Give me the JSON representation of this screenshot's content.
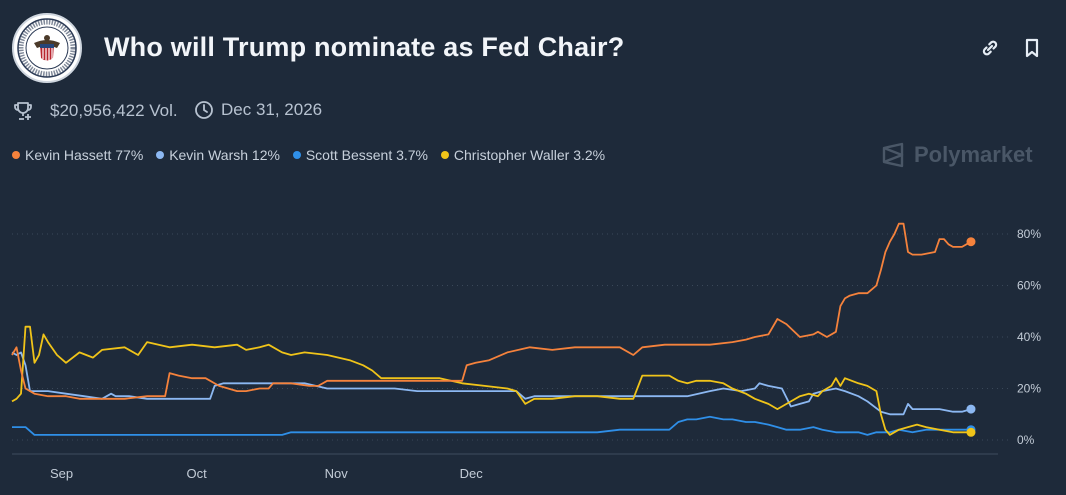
{
  "market": {
    "title": "Who will Trump nominate as Fed Chair?",
    "volume": "$20,956,422 Vol.",
    "end_date": "Dec 31, 2026",
    "brand": "Polymarket"
  },
  "icons": {
    "seal": "federal-reserve-seal",
    "link": "link-icon",
    "bookmark": "bookmark-icon",
    "volume": "trophy-icon",
    "date": "clock-icon",
    "brand": "polymarket-logo-icon"
  },
  "legend": [
    {
      "label": "Kevin Hassett 77%",
      "color": "#f5823c"
    },
    {
      "label": "Kevin Warsh 12%",
      "color": "#8cb8f2"
    },
    {
      "label": "Scott Bessent 3.7%",
      "color": "#2f8fe8"
    },
    {
      "label": "Christopher Waller 3.2%",
      "color": "#f0c419"
    }
  ],
  "chart_data": {
    "type": "line",
    "x_ticks": [
      "Sep",
      "Oct",
      "Nov",
      "Dec"
    ],
    "y_ticks": [
      "0%",
      "20%",
      "40%",
      "60%",
      "80%"
    ],
    "ylim": [
      0,
      90
    ],
    "x_unit": "days from Aug 21 to Dec 12",
    "grid": "horizontal dotted",
    "legend_position": "top-left",
    "series": [
      {
        "name": "Kevin Hassett",
        "color": "#f5823c",
        "points": [
          [
            0,
            33
          ],
          [
            1,
            36
          ],
          [
            2,
            27
          ],
          [
            3,
            20
          ],
          [
            5,
            18
          ],
          [
            8,
            17
          ],
          [
            12,
            17
          ],
          [
            15,
            16
          ],
          [
            20,
            16
          ],
          [
            25,
            16
          ],
          [
            30,
            17
          ],
          [
            34,
            17
          ],
          [
            35,
            26
          ],
          [
            37,
            25
          ],
          [
            40,
            24
          ],
          [
            43,
            24
          ],
          [
            46,
            21
          ],
          [
            50,
            19
          ],
          [
            52,
            19
          ],
          [
            55,
            20
          ],
          [
            57,
            20
          ],
          [
            58,
            22
          ],
          [
            62,
            22
          ],
          [
            66,
            21
          ],
          [
            68,
            21
          ],
          [
            70,
            23
          ],
          [
            75,
            23
          ],
          [
            80,
            23
          ],
          [
            85,
            23
          ],
          [
            90,
            23
          ],
          [
            95,
            23
          ],
          [
            100,
            23
          ],
          [
            101,
            29
          ],
          [
            103,
            30
          ],
          [
            106,
            31
          ],
          [
            110,
            34
          ],
          [
            115,
            36
          ],
          [
            120,
            35
          ],
          [
            125,
            36
          ],
          [
            130,
            36
          ],
          [
            135,
            36
          ],
          [
            138,
            33
          ],
          [
            140,
            36
          ],
          [
            145,
            37
          ],
          [
            150,
            37
          ],
          [
            155,
            37
          ],
          [
            160,
            38
          ],
          [
            163,
            39
          ],
          [
            165,
            40
          ],
          [
            168,
            41
          ],
          [
            170,
            47
          ],
          [
            172,
            45
          ],
          [
            175,
            40
          ],
          [
            178,
            41
          ],
          [
            179,
            42
          ],
          [
            181,
            40
          ],
          [
            183,
            42
          ],
          [
            184,
            52
          ],
          [
            185,
            55
          ],
          [
            186,
            56
          ],
          [
            188,
            57
          ],
          [
            190,
            57
          ],
          [
            192,
            60
          ],
          [
            193,
            66
          ],
          [
            194,
            73
          ],
          [
            195,
            77
          ],
          [
            196,
            80
          ],
          [
            197,
            84
          ],
          [
            198,
            84
          ],
          [
            199,
            73
          ],
          [
            200,
            72
          ],
          [
            202,
            72
          ],
          [
            205,
            73
          ],
          [
            206,
            78
          ],
          [
            207,
            78
          ],
          [
            208,
            76
          ],
          [
            209,
            75
          ],
          [
            211,
            75
          ],
          [
            213,
            77
          ]
        ]
      },
      {
        "name": "Kevin Warsh",
        "color": "#8cb8f2",
        "points": [
          [
            0,
            34
          ],
          [
            1,
            33
          ],
          [
            2,
            34
          ],
          [
            3,
            29
          ],
          [
            4,
            19
          ],
          [
            8,
            19
          ],
          [
            12,
            18
          ],
          [
            16,
            17
          ],
          [
            20,
            16
          ],
          [
            22,
            18
          ],
          [
            23,
            17
          ],
          [
            26,
            17
          ],
          [
            30,
            16
          ],
          [
            35,
            16
          ],
          [
            40,
            16
          ],
          [
            44,
            16
          ],
          [
            45,
            21
          ],
          [
            47,
            22
          ],
          [
            55,
            22
          ],
          [
            60,
            22
          ],
          [
            65,
            22
          ],
          [
            70,
            20
          ],
          [
            75,
            20
          ],
          [
            80,
            20
          ],
          [
            85,
            20
          ],
          [
            90,
            19
          ],
          [
            95,
            19
          ],
          [
            100,
            19
          ],
          [
            105,
            19
          ],
          [
            110,
            19
          ],
          [
            112,
            19
          ],
          [
            114,
            16
          ],
          [
            116,
            17
          ],
          [
            118,
            17
          ],
          [
            120,
            17
          ],
          [
            125,
            17
          ],
          [
            130,
            17
          ],
          [
            135,
            17
          ],
          [
            140,
            17
          ],
          [
            145,
            17
          ],
          [
            150,
            17
          ],
          [
            155,
            19
          ],
          [
            158,
            20
          ],
          [
            162,
            19
          ],
          [
            165,
            20
          ],
          [
            166,
            22
          ],
          [
            168,
            21
          ],
          [
            171,
            20
          ],
          [
            173,
            13
          ],
          [
            175,
            14
          ],
          [
            177,
            15
          ],
          [
            178,
            18
          ],
          [
            180,
            19
          ],
          [
            183,
            20
          ],
          [
            185,
            19
          ],
          [
            188,
            17
          ],
          [
            190,
            15
          ],
          [
            193,
            11
          ],
          [
            195,
            10
          ],
          [
            197,
            10
          ],
          [
            198,
            10
          ],
          [
            199,
            14
          ],
          [
            200,
            12
          ],
          [
            203,
            12
          ],
          [
            206,
            12
          ],
          [
            209,
            11
          ],
          [
            211,
            11
          ],
          [
            213,
            12
          ]
        ]
      },
      {
        "name": "Scott Bessent",
        "color": "#2f8fe8",
        "points": [
          [
            0,
            5
          ],
          [
            1,
            5
          ],
          [
            3,
            5
          ],
          [
            5,
            2
          ],
          [
            10,
            2
          ],
          [
            15,
            2
          ],
          [
            20,
            2
          ],
          [
            25,
            2
          ],
          [
            30,
            2
          ],
          [
            35,
            2
          ],
          [
            40,
            2
          ],
          [
            45,
            2
          ],
          [
            50,
            2
          ],
          [
            55,
            2
          ],
          [
            60,
            2
          ],
          [
            62,
            3
          ],
          [
            66,
            3
          ],
          [
            70,
            3
          ],
          [
            75,
            3
          ],
          [
            80,
            3
          ],
          [
            85,
            3
          ],
          [
            88,
            3
          ],
          [
            92,
            3
          ],
          [
            95,
            3
          ],
          [
            100,
            3
          ],
          [
            105,
            3
          ],
          [
            110,
            3
          ],
          [
            115,
            3
          ],
          [
            120,
            3
          ],
          [
            125,
            3
          ],
          [
            130,
            3
          ],
          [
            135,
            4
          ],
          [
            140,
            4
          ],
          [
            142,
            4
          ],
          [
            146,
            4
          ],
          [
            148,
            7
          ],
          [
            150,
            8
          ],
          [
            152,
            8
          ],
          [
            155,
            9
          ],
          [
            158,
            8
          ],
          [
            160,
            8
          ],
          [
            163,
            7
          ],
          [
            165,
            7
          ],
          [
            168,
            6
          ],
          [
            170,
            5
          ],
          [
            172,
            4
          ],
          [
            175,
            4
          ],
          [
            178,
            5
          ],
          [
            180,
            4
          ],
          [
            183,
            3
          ],
          [
            185,
            3
          ],
          [
            188,
            3
          ],
          [
            190,
            2
          ],
          [
            192,
            3
          ],
          [
            195,
            3
          ],
          [
            197,
            4
          ],
          [
            200,
            3
          ],
          [
            203,
            4
          ],
          [
            206,
            4
          ],
          [
            209,
            4
          ],
          [
            211,
            4
          ],
          [
            213,
            4
          ]
        ]
      },
      {
        "name": "Christopher Waller",
        "color": "#f0c419",
        "points": [
          [
            0,
            15
          ],
          [
            1,
            16
          ],
          [
            2,
            18
          ],
          [
            3,
            44
          ],
          [
            4,
            44
          ],
          [
            5,
            30
          ],
          [
            6,
            33
          ],
          [
            7,
            41
          ],
          [
            8,
            38
          ],
          [
            10,
            33
          ],
          [
            12,
            30
          ],
          [
            15,
            34
          ],
          [
            18,
            32
          ],
          [
            20,
            35
          ],
          [
            25,
            36
          ],
          [
            28,
            33
          ],
          [
            30,
            38
          ],
          [
            35,
            36
          ],
          [
            40,
            37
          ],
          [
            45,
            36
          ],
          [
            50,
            37
          ],
          [
            52,
            35
          ],
          [
            55,
            36
          ],
          [
            57,
            37
          ],
          [
            60,
            34
          ],
          [
            62,
            33
          ],
          [
            65,
            34
          ],
          [
            70,
            33
          ],
          [
            75,
            31
          ],
          [
            78,
            29
          ],
          [
            80,
            27
          ],
          [
            82,
            24
          ],
          [
            85,
            24
          ],
          [
            90,
            24
          ],
          [
            95,
            24
          ],
          [
            100,
            22
          ],
          [
            105,
            21
          ],
          [
            110,
            20
          ],
          [
            112,
            19
          ],
          [
            114,
            14
          ],
          [
            116,
            16
          ],
          [
            120,
            16
          ],
          [
            125,
            17
          ],
          [
            130,
            17
          ],
          [
            135,
            16
          ],
          [
            138,
            16
          ],
          [
            140,
            25
          ],
          [
            143,
            25
          ],
          [
            146,
            25
          ],
          [
            148,
            23
          ],
          [
            150,
            22
          ],
          [
            152,
            23
          ],
          [
            155,
            23
          ],
          [
            158,
            22
          ],
          [
            160,
            20
          ],
          [
            163,
            18
          ],
          [
            165,
            16
          ],
          [
            168,
            14
          ],
          [
            170,
            12
          ],
          [
            173,
            15
          ],
          [
            175,
            17
          ],
          [
            177,
            18
          ],
          [
            179,
            17
          ],
          [
            180,
            19
          ],
          [
            182,
            21
          ],
          [
            183,
            24
          ],
          [
            184,
            21
          ],
          [
            185,
            24
          ],
          [
            188,
            22
          ],
          [
            190,
            21
          ],
          [
            192,
            19
          ],
          [
            193,
            10
          ],
          [
            194,
            4
          ],
          [
            195,
            2
          ],
          [
            197,
            4
          ],
          [
            199,
            5
          ],
          [
            201,
            6
          ],
          [
            203,
            5
          ],
          [
            206,
            4
          ],
          [
            209,
            3
          ],
          [
            211,
            3
          ],
          [
            213,
            3
          ]
        ]
      }
    ]
  }
}
